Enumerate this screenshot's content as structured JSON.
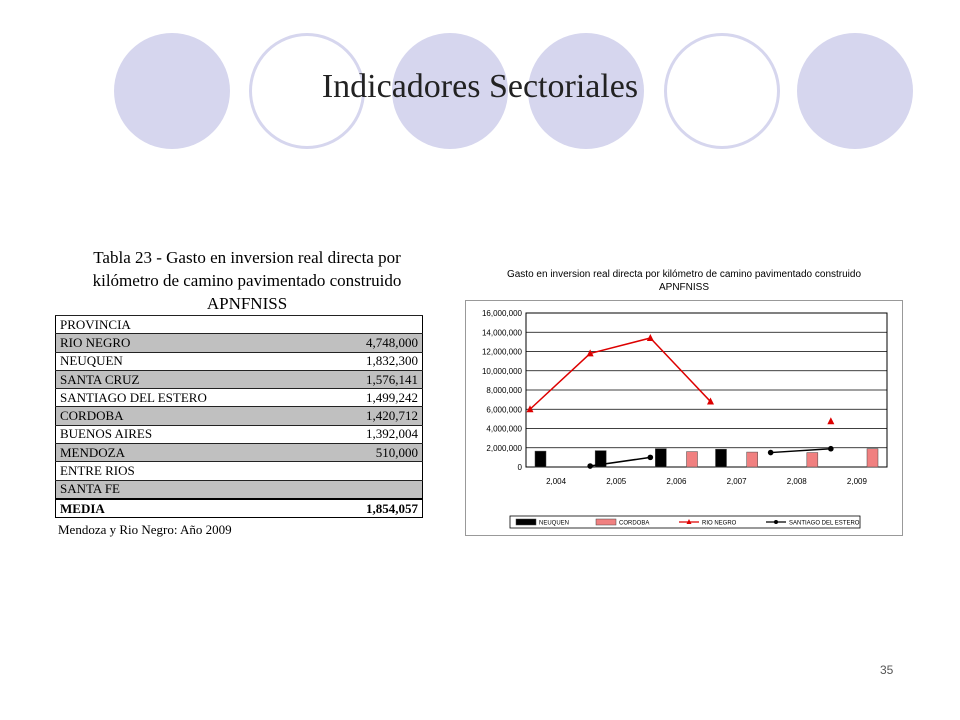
{
  "slide": {
    "title": "Indicadores Sectoriales",
    "page_number": "35"
  },
  "table": {
    "caption_lines": [
      "Tabla 23 - Gasto en inversion real directa por",
      "kilómetro de camino pavimentado construido",
      "APNFNISS"
    ],
    "header": "PROVINCIA",
    "rows": [
      {
        "name": "RIO NEGRO",
        "value": "4,748,000",
        "shaded": true
      },
      {
        "name": "NEUQUEN",
        "value": "1,832,300",
        "shaded": false
      },
      {
        "name": "SANTA CRUZ",
        "value": "1,576,141",
        "shaded": true
      },
      {
        "name": "SANTIAGO DEL ESTERO",
        "value": "1,499,242",
        "shaded": false
      },
      {
        "name": "CORDOBA",
        "value": "1,420,712",
        "shaded": true
      },
      {
        "name": "BUENOS AIRES",
        "value": "1,392,004",
        "shaded": false
      },
      {
        "name": "MENDOZA",
        "value": "510,000",
        "shaded": true
      },
      {
        "name": "ENTRE RIOS",
        "value": "",
        "shaded": false
      },
      {
        "name": "SANTA FE",
        "value": "",
        "shaded": true
      }
    ],
    "media": {
      "name": "MEDIA",
      "value": "1,854,057"
    },
    "note": "Mendoza y Rio Negro: Año 2009"
  },
  "colors": {
    "deco_circle": "#d6d6ee",
    "neuquen": "#000000",
    "cordoba": "#f08080",
    "rio_negro": "#dd0000",
    "santiago": "#000000"
  },
  "chart_data": {
    "type": "bar",
    "title_lines": [
      "Gasto en inversion real directa por kilómetro de camino pavimentado construido",
      "APNFNISS"
    ],
    "categories": [
      "2,004",
      "2,005",
      "2,006",
      "2,007",
      "2,008",
      "2,009"
    ],
    "y_ticks": [
      "0",
      "2,000,000",
      "4,000,000",
      "6,000,000",
      "8,000,000",
      "10,000,000",
      "12,000,000",
      "14,000,000",
      "16,000,000"
    ],
    "ylim": [
      0,
      16000000
    ],
    "grid": true,
    "legend_position": "bottom",
    "series": [
      {
        "name": "NEUQUEN",
        "kind": "bar",
        "color": "#000000",
        "values": [
          1650000,
          1700000,
          1900000,
          1850000,
          null,
          null
        ]
      },
      {
        "name": "CORDOBA",
        "kind": "bar",
        "color": "#f08080",
        "values": [
          null,
          null,
          1600000,
          1550000,
          1500000,
          1900000
        ]
      },
      {
        "name": "RIO NEGRO",
        "kind": "line",
        "marker": "triangle",
        "color": "#dd0000",
        "values": [
          6000000,
          11800000,
          13400000,
          6800000,
          null,
          4750000
        ]
      },
      {
        "name": "SANTIAGO DEL ESTERO",
        "kind": "line",
        "marker": "circle",
        "color": "#000000",
        "values": [
          null,
          100000,
          1000000,
          null,
          1500000,
          1900000
        ]
      }
    ]
  }
}
